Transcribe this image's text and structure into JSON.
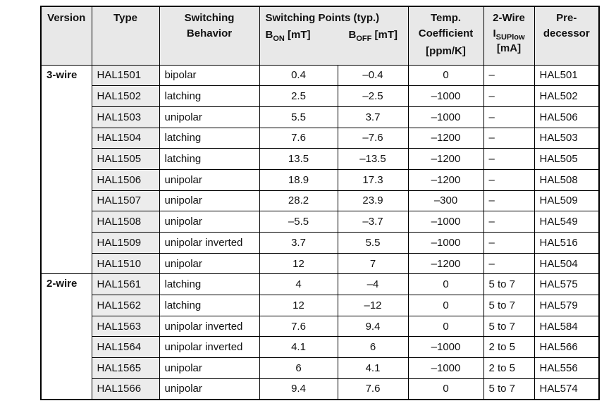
{
  "colors": {
    "header_bg": "#e8e8e8",
    "type_column_bg": "#ececec",
    "border": "#000000",
    "text": "#111111",
    "page_bg": "#ffffff"
  },
  "table": {
    "headers": {
      "version": "Version",
      "type": "Type",
      "behavior_line1": "Switching",
      "behavior_line2": "Behavior",
      "switching_points_title": "Switching Points (typ.)",
      "b_on": {
        "base": "B",
        "sub": "ON",
        "unit": " [mT]"
      },
      "b_off": {
        "base": "B",
        "sub": "OFF",
        "unit": " [mT]"
      },
      "temp_line1": "Temp.",
      "temp_line2": "Coefficient",
      "temp_line3": "[ppm/K]",
      "two_wire_line1": "2-Wire",
      "i_sup": {
        "base": "I",
        "sub": "SUPlow"
      },
      "two_wire_unit": "[mA]",
      "pre_line1": "Pre-",
      "pre_line2": "decessor"
    },
    "groups": [
      {
        "version": "3-wire",
        "rows": [
          {
            "type": "HAL1501",
            "behavior": "bipolar",
            "b_on": "0.4",
            "b_off": "–0.4",
            "temp": "0",
            "i_sup": "–",
            "pred": "HAL501"
          },
          {
            "type": "HAL1502",
            "behavior": "latching",
            "b_on": "2.5",
            "b_off": "–2.5",
            "temp": "–1000",
            "i_sup": "–",
            "pred": "HAL502"
          },
          {
            "type": "HAL1503",
            "behavior": "unipolar",
            "b_on": "5.5",
            "b_off": "3.7",
            "temp": "–1000",
            "i_sup": "–",
            "pred": "HAL506"
          },
          {
            "type": "HAL1504",
            "behavior": "latching",
            "b_on": "7.6",
            "b_off": "–7.6",
            "temp": "–1200",
            "i_sup": "–",
            "pred": "HAL503"
          },
          {
            "type": "HAL1505",
            "behavior": "latching",
            "b_on": "13.5",
            "b_off": "–13.5",
            "temp": "–1200",
            "i_sup": "–",
            "pred": "HAL505"
          },
          {
            "type": "HAL1506",
            "behavior": "unipolar",
            "b_on": "18.9",
            "b_off": "17.3",
            "temp": "–1200",
            "i_sup": "–",
            "pred": "HAL508"
          },
          {
            "type": "HAL1507",
            "behavior": "unipolar",
            "b_on": "28.2",
            "b_off": "23.9",
            "temp": "–300",
            "i_sup": "–",
            "pred": "HAL509"
          },
          {
            "type": "HAL1508",
            "behavior": "unipolar",
            "b_on": "–5.5",
            "b_off": "–3.7",
            "temp": "–1000",
            "i_sup": "–",
            "pred": "HAL549"
          },
          {
            "type": "HAL1509",
            "behavior": "unipolar inverted",
            "b_on": "3.7",
            "b_off": "5.5",
            "temp": "–1000",
            "i_sup": "–",
            "pred": "HAL516"
          },
          {
            "type": "HAL1510",
            "behavior": "unipolar",
            "b_on": "12",
            "b_off": "7",
            "temp": "–1200",
            "i_sup": "–",
            "pred": "HAL504"
          }
        ]
      },
      {
        "version": "2-wire",
        "rows": [
          {
            "type": "HAL1561",
            "behavior": "latching",
            "b_on": "4",
            "b_off": "–4",
            "temp": "0",
            "i_sup": "5 to 7",
            "pred": "HAL575"
          },
          {
            "type": "HAL1562",
            "behavior": "latching",
            "b_on": "12",
            "b_off": "–12",
            "temp": "0",
            "i_sup": "5 to 7",
            "pred": "HAL579"
          },
          {
            "type": "HAL1563",
            "behavior": "unipolar inverted",
            "b_on": "7.6",
            "b_off": "9.4",
            "temp": "0",
            "i_sup": "5 to 7",
            "pred": "HAL584"
          },
          {
            "type": "HAL1564",
            "behavior": "unipolar inverted",
            "b_on": "4.1",
            "b_off": "6",
            "temp": "–1000",
            "i_sup": "2 to 5",
            "pred": "HAL566"
          },
          {
            "type": "HAL1565",
            "behavior": "unipolar",
            "b_on": "6",
            "b_off": "4.1",
            "temp": "–1000",
            "i_sup": "2 to 5",
            "pred": "HAL556"
          },
          {
            "type": "HAL1566",
            "behavior": "unipolar",
            "b_on": "9.4",
            "b_off": "7.6",
            "temp": "0",
            "i_sup": "5 to 7",
            "pred": "HAL574"
          }
        ]
      }
    ]
  }
}
